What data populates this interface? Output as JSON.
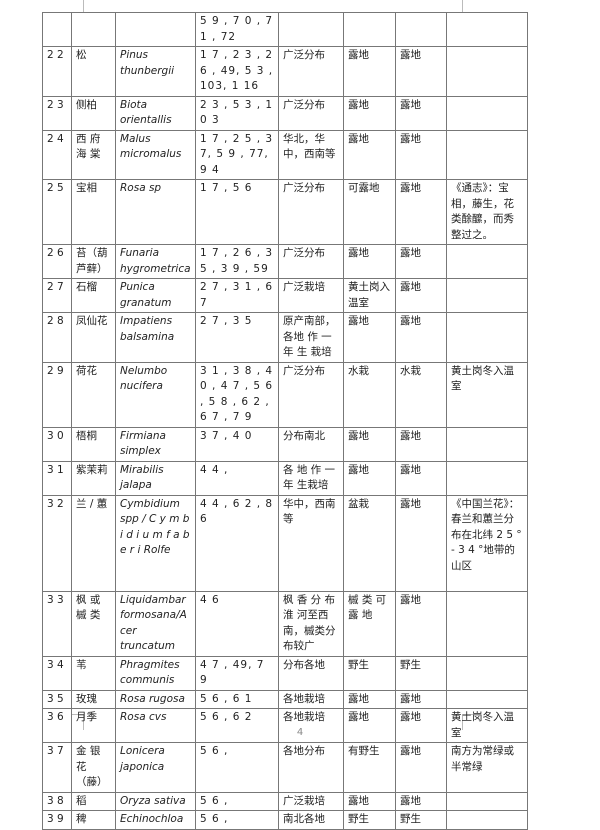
{
  "table": {
    "rows": [
      {
        "no": "",
        "name": "",
        "latin": "",
        "refs": "5 9 , 7 0 , 7 1 , 72",
        "distribution": "",
        "col6": "",
        "col7": "",
        "note": ""
      },
      {
        "no": "2 2",
        "name": "松",
        "latin": "Pinus thunbergii",
        "refs": "1 7 , 2 3 , 2 6 , 49, 5 3 , 103, 1 16",
        "distribution": "广泛分布",
        "col6": "露地",
        "col7": "露地",
        "note": ""
      },
      {
        "no": "2 3",
        "name": "侧柏",
        "latin": "Biota orientallis",
        "refs": "2 3 , 5 3 , 1 0 3",
        "distribution": "广泛分布",
        "col6": "露地",
        "col7": "露地",
        "note": ""
      },
      {
        "no": "2 4",
        "name": "西 府 海 棠",
        "latin": "Malus micromalus",
        "refs": "1 7 , 2 5 , 37, 5 9 , 77, 9 4",
        "distribution": "华北，华中，西南等",
        "col6": "露地",
        "col7": "露地",
        "note": ""
      },
      {
        "no": "2 5",
        "name": "宝相",
        "latin": "Rosa sp",
        "refs": "1 7 , 5 6",
        "distribution": "广泛分布",
        "col6": "可露地",
        "col7": "露地",
        "note": "《通志》：宝相，藤生，花类酴醿，而秀整过之。"
      },
      {
        "no": "2 6",
        "name": "苔（葫芦藓）",
        "latin": "Funaria hygrometrica",
        "refs": "1 7 , 2 6 , 3 5 , 3 9 , 59",
        "distribution": "广泛分布",
        "col6": "露地",
        "col7": "露地",
        "note": ""
      },
      {
        "no": "2 7",
        "name": "石榴",
        "latin": "Punica granatum",
        "refs": "2 7 , 3 1 , 6 7",
        "distribution": "广泛栽培",
        "col6": "黄土岗入温室",
        "col7": "露地",
        "note": ""
      },
      {
        "no": "2 8",
        "name": "凤仙花",
        "latin": "Impatiens balsamina",
        "refs": "2 7 , 3 5",
        "distribution": "原产南部，各地 作 一 年 生 栽培",
        "col6": "露地",
        "col7": "露地",
        "note": ""
      },
      {
        "no": "2 9",
        "name": "荷花",
        "latin": "Nelumbo nucifera",
        "refs": "3 1 , 3 8 , 4 0 , 4 7 , 5 6 , 5 8 , 6 2 , 6 7 , 7 9",
        "distribution": "广泛分布",
        "col6": "水栽",
        "col7": "水栽",
        "note": "黄土岗冬入温室"
      },
      {
        "no": "3 0",
        "name": "梧桐",
        "latin": "Firmiana simplex",
        "refs": "3 7 , 4 0",
        "distribution": "分布南北",
        "col6": "露地",
        "col7": "露地",
        "note": ""
      },
      {
        "no": "3 1",
        "name": "紫茉莉",
        "latin": "Mirabilis jalapa",
        "refs": "4 4 ,",
        "distribution": "各 地 作 一 年 生栽培",
        "col6": "露地",
        "col7": "露地",
        "note": ""
      },
      {
        "no": "3 2",
        "name": "兰 / 蕙",
        "latin": "Cymbidium spp / C y m b i d i u m  f a b e r i  Rolfe",
        "refs": "4 4 , 6 2 , 8 6",
        "distribution": "华中，西南等",
        "col6": "盆栽",
        "col7": "露地",
        "note": "《中国兰花》：春兰和蕙兰分布在北纬 2 5 ° - 3 4 °地带的山区"
      },
      {
        "no": "3 3",
        "name": "枫 或 槭 类",
        "latin": "Liquidambar formosana/Acer truncatum",
        "refs": "4 6",
        "distribution": "枫 香 分 布 淮 河至西南，槭类分布较广",
        "col6": "槭 类 可 露 地",
        "col7": "露地",
        "note": ""
      },
      {
        "no": "3 4",
        "name": "苇",
        "latin": "Phragmites communis",
        "refs": "4 7 , 49, 7 9",
        "distribution": "分布各地",
        "col6": "野生",
        "col7": "野生",
        "note": ""
      },
      {
        "no": "3 5",
        "name": "玫瑰",
        "latin": "Rosa rugosa",
        "refs": "5 6 , 6 1",
        "distribution": "各地栽培",
        "col6": "露地",
        "col7": "露地",
        "note": ""
      },
      {
        "no": "3 6",
        "name": "月季",
        "latin": "Rosa cvs",
        "refs": "5 6 , 6 2",
        "distribution": "各地栽培",
        "col6": "露地",
        "col7": "露地",
        "note": "黄土岗冬入温室"
      },
      {
        "no": "3 7",
        "name": "金 银 花（藤）",
        "latin": "Lonicera japonica",
        "refs": "5 6 ,",
        "distribution": "各地分布",
        "col6": "有野生",
        "col7": "露地",
        "note": "南方为常绿或半常绿"
      },
      {
        "no": "3 8",
        "name": "稻",
        "latin": "Oryza sativa",
        "refs": "5 6 ,",
        "distribution": "广泛栽培",
        "col6": "露地",
        "col7": "露地",
        "note": ""
      },
      {
        "no": "3 9",
        "name": "稗",
        "latin": "Echinochloa",
        "refs": "5 6 ,",
        "distribution": "南北各地",
        "col6": "野生",
        "col7": "野生",
        "note": ""
      }
    ]
  },
  "footer": {
    "page_number": "4"
  }
}
